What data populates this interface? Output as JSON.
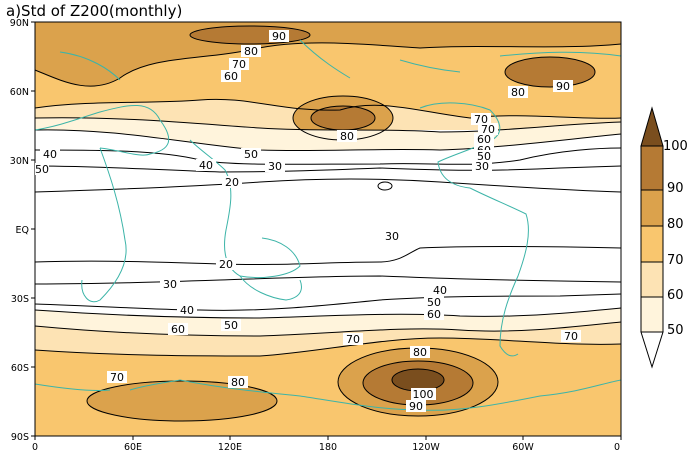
{
  "title": "a)Std of Z200(monthly)",
  "y_ticks": [
    "90N",
    "60N",
    "30N",
    "EQ",
    "30S",
    "60S",
    "90S"
  ],
  "x_ticks": [
    "0",
    "60E",
    "120E",
    "180",
    "120W",
    "60W",
    "0"
  ],
  "colorbar": {
    "levels": [
      "50",
      "60",
      "70",
      "80",
      "90",
      "100"
    ],
    "colors": [
      "#fff4dc",
      "#fde3b4",
      "#f9c66e",
      "#dba24c",
      "#b57a34",
      "#7a4e1e"
    ]
  },
  "contour_labels": [
    "90",
    "80",
    "70",
    "60",
    "90",
    "80",
    "70",
    "60",
    "80",
    "70",
    "60",
    "50",
    "40",
    "50",
    "40",
    "30",
    "20",
    "30",
    "20",
    "30",
    "40",
    "50",
    "60",
    "30",
    "40",
    "60",
    "50",
    "70",
    "80",
    "100",
    "90",
    "70",
    "80",
    "70",
    "50"
  ],
  "colors": {
    "coastline": "#3cb4a8",
    "contour": "#000000"
  }
}
